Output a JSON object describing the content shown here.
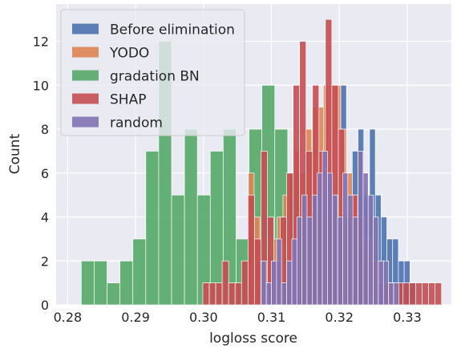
{
  "chart_data": {
    "type": "histogram",
    "title": "",
    "xlabel": "logloss score",
    "ylabel": "Count",
    "xlim": [
      0.2783,
      0.3365
    ],
    "ylim": [
      0,
      13.7
    ],
    "xticks": [
      0.28,
      0.29,
      0.3,
      0.31,
      0.32,
      0.33
    ],
    "xtick_labels": [
      "0.28",
      "0.29",
      "0.30",
      "0.31",
      "0.32",
      "0.33"
    ],
    "yticks": [
      0,
      2,
      4,
      6,
      8,
      10,
      12
    ],
    "ytick_labels": [
      "0",
      "2",
      "4",
      "6",
      "8",
      "10",
      "12"
    ],
    "grid": true,
    "legend_position": "top-left",
    "series": [
      {
        "name": "gradation BN",
        "color": "#55a868",
        "bin_width": 0.0019,
        "bins": [
          {
            "x": 0.282,
            "count": 2
          },
          {
            "x": 0.2839,
            "count": 2
          },
          {
            "x": 0.2858,
            "count": 1
          },
          {
            "x": 0.2877,
            "count": 2
          },
          {
            "x": 0.2896,
            "count": 3
          },
          {
            "x": 0.2915,
            "count": 7
          },
          {
            "x": 0.2934,
            "count": 12
          },
          {
            "x": 0.2953,
            "count": 5
          },
          {
            "x": 0.2972,
            "count": 8
          },
          {
            "x": 0.2991,
            "count": 5
          },
          {
            "x": 0.301,
            "count": 7
          },
          {
            "x": 0.3029,
            "count": 8
          },
          {
            "x": 0.3048,
            "count": 3
          },
          {
            "x": 0.3067,
            "count": 8
          },
          {
            "x": 0.3086,
            "count": 10
          },
          {
            "x": 0.3105,
            "count": 8
          },
          {
            "x": 0.3124,
            "count": 6
          },
          {
            "x": 0.3143,
            "count": 2
          },
          {
            "x": 0.3162,
            "count": 1
          },
          {
            "x": 0.3181,
            "count": 2
          },
          {
            "x": 0.32,
            "count": 1
          },
          {
            "x": 0.3219,
            "count": 1
          },
          {
            "x": 0.3238,
            "count": 1
          },
          {
            "x": 0.3257,
            "count": 1
          }
        ]
      },
      {
        "name": "Before elimination",
        "color": "#4c72b0",
        "bin_width": 0.00085,
        "bins": [
          {
            "x": 0.31,
            "count": 1
          },
          {
            "x": 0.31085,
            "count": 1
          },
          {
            "x": 0.3117,
            "count": 2
          },
          {
            "x": 0.31255,
            "count": 1
          },
          {
            "x": 0.3134,
            "count": 3
          },
          {
            "x": 0.31425,
            "count": 2
          },
          {
            "x": 0.3151,
            "count": 4
          },
          {
            "x": 0.31595,
            "count": 5
          },
          {
            "x": 0.3168,
            "count": 6
          },
          {
            "x": 0.31765,
            "count": 7
          },
          {
            "x": 0.3185,
            "count": 8
          },
          {
            "x": 0.31935,
            "count": 7
          },
          {
            "x": 0.3202,
            "count": 10
          },
          {
            "x": 0.32105,
            "count": 5
          },
          {
            "x": 0.3219,
            "count": 7
          },
          {
            "x": 0.32275,
            "count": 8
          },
          {
            "x": 0.3236,
            "count": 5
          },
          {
            "x": 0.32445,
            "count": 8
          },
          {
            "x": 0.3253,
            "count": 5
          },
          {
            "x": 0.32615,
            "count": 4
          },
          {
            "x": 0.327,
            "count": 3
          },
          {
            "x": 0.32785,
            "count": 3
          },
          {
            "x": 0.3287,
            "count": 2
          },
          {
            "x": 0.32955,
            "count": 2
          },
          {
            "x": 0.3304,
            "count": 1
          }
        ]
      },
      {
        "name": "YODO",
        "color": "#dd8452",
        "bin_width": 0.00085,
        "bins": [
          {
            "x": 0.3066,
            "count": 6
          },
          {
            "x": 0.30745,
            "count": 4
          },
          {
            "x": 0.3083,
            "count": 2
          },
          {
            "x": 0.30915,
            "count": 2
          },
          {
            "x": 0.31,
            "count": 3
          },
          {
            "x": 0.31085,
            "count": 4
          },
          {
            "x": 0.3117,
            "count": 5
          },
          {
            "x": 0.31255,
            "count": 6
          },
          {
            "x": 0.3134,
            "count": 7
          },
          {
            "x": 0.31425,
            "count": 6
          },
          {
            "x": 0.3151,
            "count": 8
          },
          {
            "x": 0.31595,
            "count": 9
          },
          {
            "x": 0.3168,
            "count": 9
          },
          {
            "x": 0.31765,
            "count": 10
          },
          {
            "x": 0.3185,
            "count": 10
          },
          {
            "x": 0.31935,
            "count": 10
          },
          {
            "x": 0.3202,
            "count": 8
          },
          {
            "x": 0.32105,
            "count": 6
          },
          {
            "x": 0.3219,
            "count": 5
          },
          {
            "x": 0.32275,
            "count": 4
          },
          {
            "x": 0.3236,
            "count": 3
          },
          {
            "x": 0.32445,
            "count": 2
          },
          {
            "x": 0.3253,
            "count": 2
          },
          {
            "x": 0.32615,
            "count": 1
          },
          {
            "x": 0.327,
            "count": 1
          }
        ]
      },
      {
        "name": "SHAP",
        "color": "#c44e52",
        "bin_width": 0.00095,
        "bins": [
          {
            "x": 0.2999,
            "count": 1
          },
          {
            "x": 0.30085,
            "count": 1
          },
          {
            "x": 0.3018,
            "count": 1
          },
          {
            "x": 0.30275,
            "count": 2
          },
          {
            "x": 0.3037,
            "count": 1
          },
          {
            "x": 0.30465,
            "count": 1
          },
          {
            "x": 0.3056,
            "count": 2
          },
          {
            "x": 0.30655,
            "count": 5
          },
          {
            "x": 0.3075,
            "count": 3
          },
          {
            "x": 0.30845,
            "count": 7
          },
          {
            "x": 0.3094,
            "count": 4
          },
          {
            "x": 0.31035,
            "count": 2
          },
          {
            "x": 0.3113,
            "count": 4
          },
          {
            "x": 0.31225,
            "count": 6
          },
          {
            "x": 0.3132,
            "count": 10
          },
          {
            "x": 0.31415,
            "count": 12
          },
          {
            "x": 0.3151,
            "count": 7
          },
          {
            "x": 0.31605,
            "count": 10
          },
          {
            "x": 0.317,
            "count": 7
          },
          {
            "x": 0.31795,
            "count": 13
          },
          {
            "x": 0.3189,
            "count": 10
          },
          {
            "x": 0.31985,
            "count": 8
          },
          {
            "x": 0.3208,
            "count": 4
          },
          {
            "x": 0.32175,
            "count": 5
          },
          {
            "x": 0.3227,
            "count": 4
          },
          {
            "x": 0.32365,
            "count": 3
          },
          {
            "x": 0.3246,
            "count": 2
          },
          {
            "x": 0.32555,
            "count": 1
          },
          {
            "x": 0.3265,
            "count": 1
          },
          {
            "x": 0.32745,
            "count": 1
          },
          {
            "x": 0.3284,
            "count": 1
          },
          {
            "x": 0.32935,
            "count": 1
          },
          {
            "x": 0.3303,
            "count": 1
          },
          {
            "x": 0.33125,
            "count": 1
          },
          {
            "x": 0.3322,
            "count": 1
          },
          {
            "x": 0.33315,
            "count": 1
          },
          {
            "x": 0.3341,
            "count": 1
          }
        ]
      },
      {
        "name": "random",
        "color": "#8172b3",
        "bin_width": 0.00075,
        "bins": [
          {
            "x": 0.3085,
            "count": 2
          },
          {
            "x": 0.30925,
            "count": 1
          },
          {
            "x": 0.31,
            "count": 2
          },
          {
            "x": 0.31075,
            "count": 3
          },
          {
            "x": 0.3115,
            "count": 1
          },
          {
            "x": 0.31225,
            "count": 2
          },
          {
            "x": 0.313,
            "count": 3
          },
          {
            "x": 0.31375,
            "count": 4
          },
          {
            "x": 0.3145,
            "count": 5
          },
          {
            "x": 0.31525,
            "count": 4
          },
          {
            "x": 0.316,
            "count": 5
          },
          {
            "x": 0.31675,
            "count": 6
          },
          {
            "x": 0.3175,
            "count": 7
          },
          {
            "x": 0.31825,
            "count": 6
          },
          {
            "x": 0.319,
            "count": 5
          },
          {
            "x": 0.31975,
            "count": 4
          },
          {
            "x": 0.3205,
            "count": 6
          },
          {
            "x": 0.32125,
            "count": 5
          },
          {
            "x": 0.322,
            "count": 4
          },
          {
            "x": 0.32275,
            "count": 7
          },
          {
            "x": 0.3235,
            "count": 6
          },
          {
            "x": 0.32425,
            "count": 5
          },
          {
            "x": 0.325,
            "count": 4
          },
          {
            "x": 0.32575,
            "count": 2
          },
          {
            "x": 0.3265,
            "count": 2
          },
          {
            "x": 0.32725,
            "count": 1
          },
          {
            "x": 0.328,
            "count": 1
          }
        ]
      }
    ],
    "legend_order": [
      "Before elimination",
      "YODO",
      "gradation BN",
      "SHAP",
      "random"
    ],
    "bar_opacity": 0.9
  }
}
